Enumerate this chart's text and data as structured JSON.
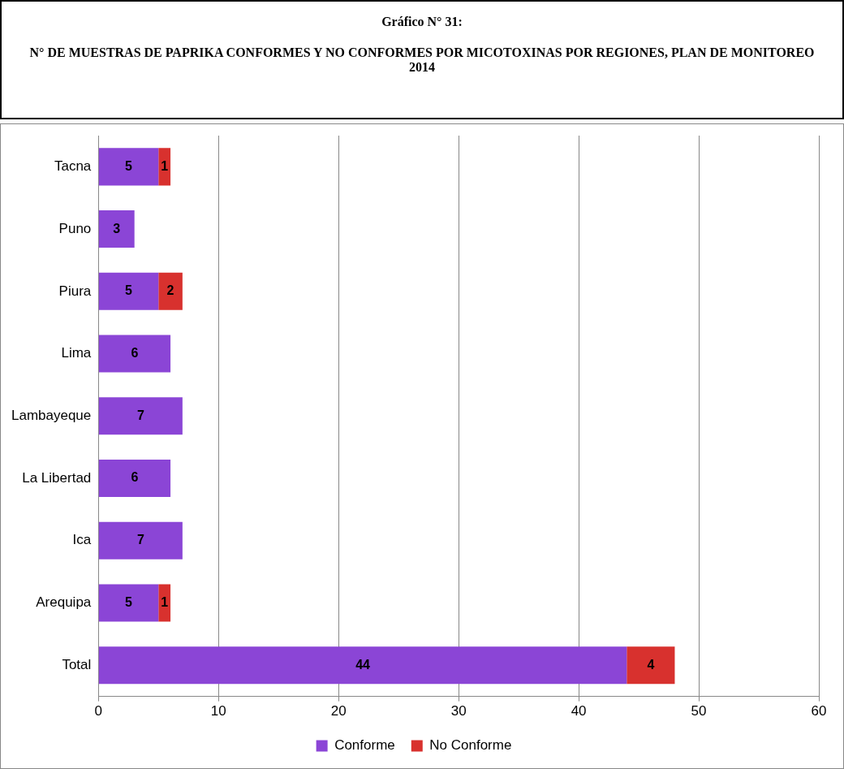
{
  "chart_data": {
    "type": "bar",
    "orientation": "horizontal",
    "stacked": true,
    "title": "Gráfico N° 31:",
    "subtitle": "N° DE MUESTRAS DE PAPRIKA CONFORMES Y NO CONFORMES POR MICOTOXINAS POR REGIONES, PLAN DE MONITOREO 2014",
    "categories": [
      "Tacna",
      "Puno",
      "Piura",
      "Lima",
      "Lambayeque",
      "La Libertad",
      "Ica",
      "Arequipa",
      "Total"
    ],
    "series": [
      {
        "name": "Conforme",
        "color": "#8b45d6",
        "values": [
          5,
          3,
          5,
          6,
          7,
          6,
          7,
          5,
          44
        ]
      },
      {
        "name": "No Conforme",
        "color": "#d8312e",
        "values": [
          1,
          null,
          2,
          null,
          null,
          null,
          null,
          1,
          4
        ]
      }
    ],
    "xlim": [
      0,
      60
    ],
    "xticks": [
      0,
      10,
      20,
      30,
      40,
      50,
      60
    ],
    "grid": "x",
    "legend": "bottom",
    "data_labels": true
  }
}
